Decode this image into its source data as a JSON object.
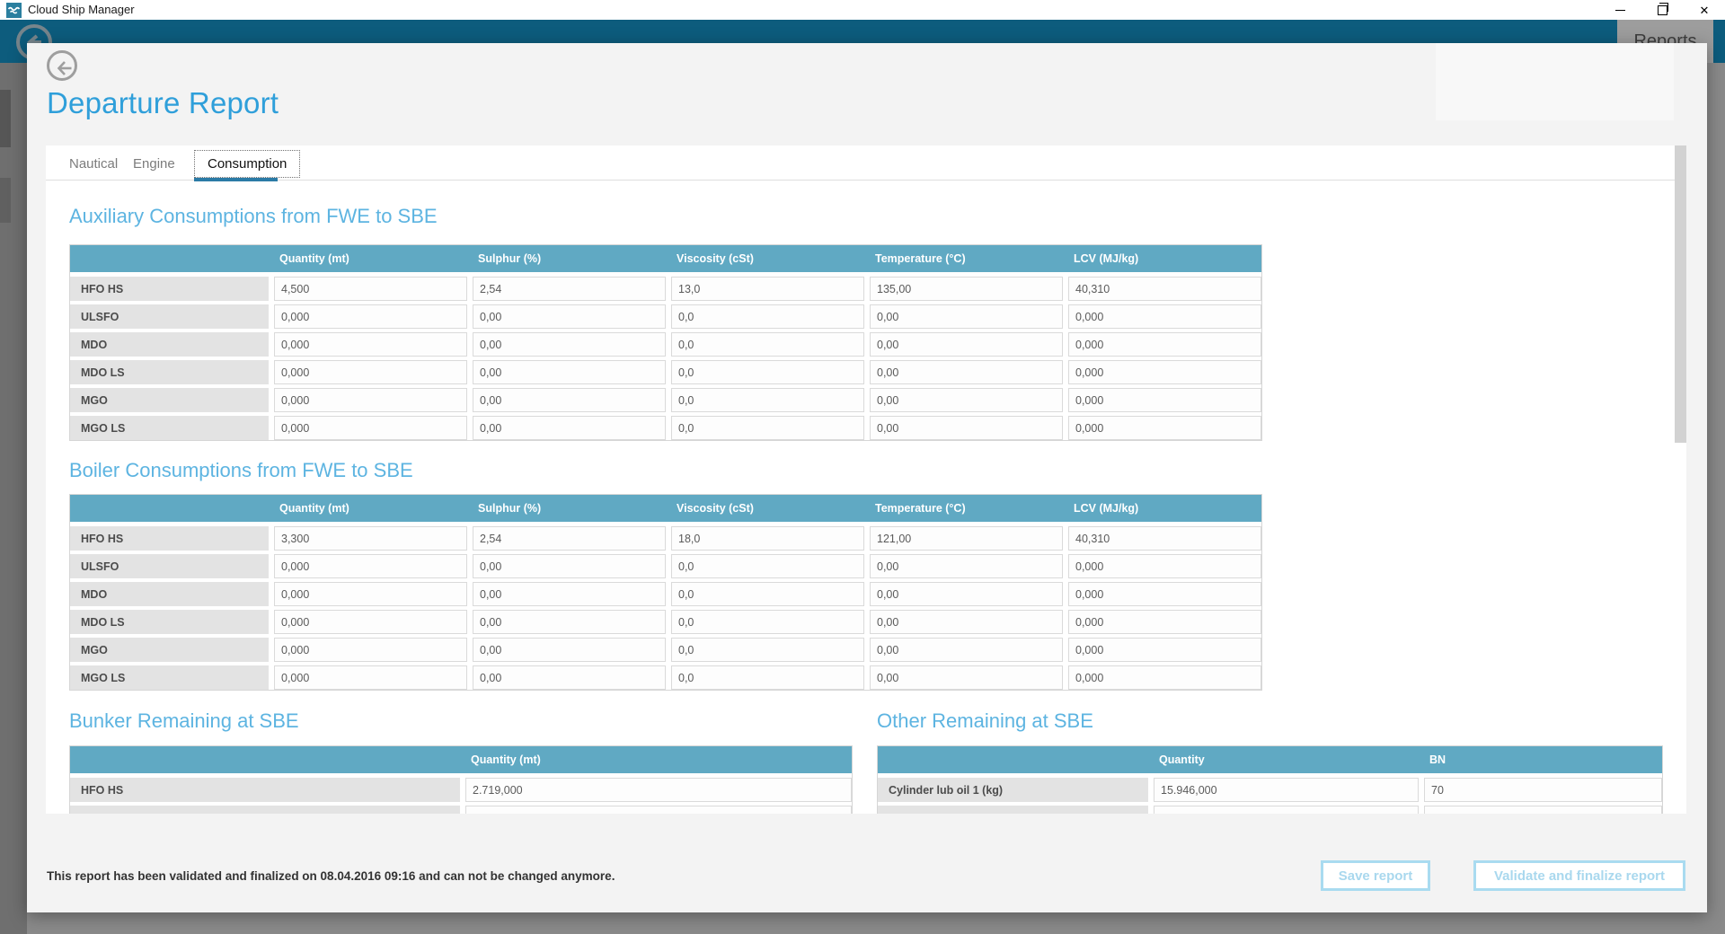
{
  "window": {
    "title": "Cloud Ship Manager",
    "controls": [
      {
        "name": "minimize"
      },
      {
        "name": "restore"
      },
      {
        "name": "close"
      }
    ]
  },
  "nav": {
    "reports": "Reports"
  },
  "report": {
    "title": "Departure Report"
  },
  "tabs": [
    {
      "label": "Nautical",
      "active": false
    },
    {
      "label": "Engine",
      "active": false
    },
    {
      "label": "Consumption",
      "active": true
    }
  ],
  "sections": {
    "auxiliary": {
      "title": "Auxiliary Consumptions from FWE to SBE",
      "columns": [
        "Quantity (mt)",
        "Sulphur (%)",
        "Viscosity (cSt)",
        "Temperature (°C)",
        "LCV (MJ/kg)"
      ],
      "rows": [
        {
          "label": "HFO HS",
          "values": [
            "4,500",
            "2,54",
            "13,0",
            "135,00",
            "40,310"
          ]
        },
        {
          "label": "ULSFO",
          "values": [
            "0,000",
            "0,00",
            "0,0",
            "0,00",
            "0,000"
          ]
        },
        {
          "label": "MDO",
          "values": [
            "0,000",
            "0,00",
            "0,0",
            "0,00",
            "0,000"
          ]
        },
        {
          "label": "MDO LS",
          "values": [
            "0,000",
            "0,00",
            "0,0",
            "0,00",
            "0,000"
          ]
        },
        {
          "label": "MGO",
          "values": [
            "0,000",
            "0,00",
            "0,0",
            "0,00",
            "0,000"
          ]
        },
        {
          "label": "MGO LS",
          "values": [
            "0,000",
            "0,00",
            "0,0",
            "0,00",
            "0,000"
          ]
        }
      ]
    },
    "boiler": {
      "title": "Boiler Consumptions from FWE to SBE",
      "columns": [
        "Quantity (mt)",
        "Sulphur (%)",
        "Viscosity (cSt)",
        "Temperature (°C)",
        "LCV (MJ/kg)"
      ],
      "rows": [
        {
          "label": "HFO HS",
          "values": [
            "3,300",
            "2,54",
            "18,0",
            "121,00",
            "40,310"
          ]
        },
        {
          "label": "ULSFO",
          "values": [
            "0,000",
            "0,00",
            "0,0",
            "0,00",
            "0,000"
          ]
        },
        {
          "label": "MDO",
          "values": [
            "0,000",
            "0,00",
            "0,0",
            "0,00",
            "0,000"
          ]
        },
        {
          "label": "MDO LS",
          "values": [
            "0,000",
            "0,00",
            "0,0",
            "0,00",
            "0,000"
          ]
        },
        {
          "label": "MGO",
          "values": [
            "0,000",
            "0,00",
            "0,0",
            "0,00",
            "0,000"
          ]
        },
        {
          "label": "MGO LS",
          "values": [
            "0,000",
            "0,00",
            "0,0",
            "0,00",
            "0,000"
          ]
        }
      ]
    },
    "bunker": {
      "title": "Bunker Remaining at SBE",
      "columns": [
        "Quantity (mt)"
      ],
      "rows": [
        {
          "label": "HFO HS",
          "values": [
            "2.719,000"
          ]
        }
      ],
      "clipped_row": true
    },
    "other": {
      "title": "Other Remaining at SBE",
      "columns": [
        "Quantity",
        "BN"
      ],
      "rows": [
        {
          "label": "Cylinder lub oil 1 (kg)",
          "values": [
            "15.946,000",
            "70"
          ]
        }
      ],
      "clipped_row": true
    }
  },
  "footer": {
    "message": "This report has been validated and finalized on 08.04.2016 09:16 and can not be changed anymore.",
    "buttons": [
      {
        "label": "Save report",
        "enabled": false
      },
      {
        "label": "Validate and finalize report",
        "enabled": false
      }
    ]
  },
  "colors": {
    "nav_teal": "#0d5c7d",
    "table_header_teal": "#60a9c3",
    "title_blue": "#2f9fda",
    "heading_blue": "#5db4e1",
    "disabled_button_blue": "#a9dbf0"
  }
}
